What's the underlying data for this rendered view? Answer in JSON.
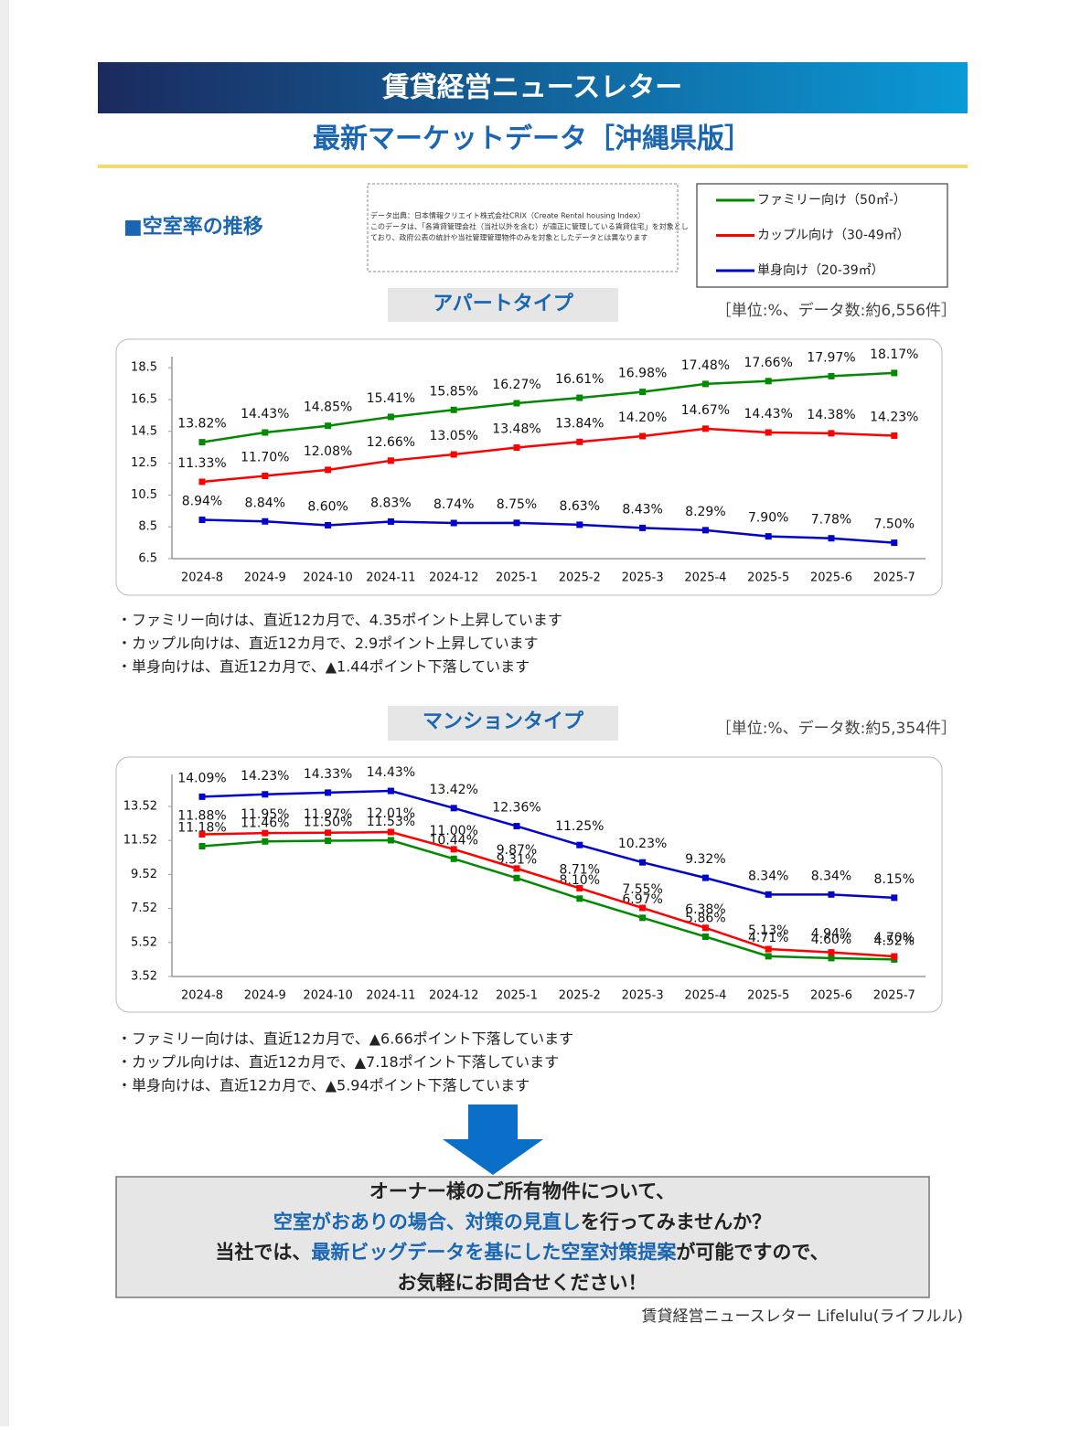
{
  "header": {
    "title": "賃貸経営ニュースレター",
    "subtitle": "最新マーケットデータ［沖縄県版］"
  },
  "section_title": "■空室率の推移",
  "source_note": [
    "データ出典：日本情報クリエイト株式会社CRIX（Create Rental housing Index）",
    "このデータは、「各賃貸管理会社（当社以外を含む）が適正に管理している賃貸住宅」を対象とし",
    "ており、政府公表の統計や当社管理管理物件のみを対象としたデータとは異なります"
  ],
  "legend": [
    {
      "name": "ファミリー向け（50㎡-）",
      "color": "#008a00"
    },
    {
      "name": "カップル向け（30-49㎡）",
      "color": "#ff0000"
    },
    {
      "name": "単身向け（20-39㎡）",
      "color": "#0000d0"
    }
  ],
  "chart_data": [
    {
      "type": "line",
      "title": "アパートタイプ",
      "unit_note": "［単位:%、データ数:約6,556件］",
      "grid": false,
      "categories": [
        "2024-8",
        "2024-9",
        "2024-10",
        "2024-11",
        "2024-12",
        "2025-1",
        "2025-2",
        "2025-3",
        "2025-4",
        "2025-5",
        "2025-6",
        "2025-7"
      ],
      "ylim": [
        6.5,
        19.2
      ],
      "yticks": [
        6.5,
        8.5,
        10.5,
        12.5,
        14.5,
        16.5,
        18.5
      ],
      "series": [
        {
          "values": [
            13.82,
            14.43,
            14.85,
            15.41,
            15.85,
            16.27,
            16.61,
            16.98,
            17.48,
            17.66,
            17.97,
            18.17
          ],
          "value_labels": [
            "13.82%",
            "14.43%",
            "14.85%",
            "15.41%",
            "15.85%",
            "16.27%",
            "16.61%",
            "16.98%",
            "17.48%",
            "17.66%",
            "17.97%",
            "18.17%"
          ]
        },
        {
          "values": [
            11.33,
            11.7,
            12.08,
            12.66,
            13.05,
            13.48,
            13.84,
            14.2,
            14.67,
            14.43,
            14.38,
            14.23
          ],
          "value_labels": [
            "11.33%",
            "11.70%",
            "12.08%",
            "12.66%",
            "13.05%",
            "13.48%",
            "13.84%",
            "14.20%",
            "14.67%",
            "14.43%",
            "14.38%",
            "14.23%"
          ]
        },
        {
          "values": [
            8.94,
            8.84,
            8.6,
            8.83,
            8.74,
            8.75,
            8.63,
            8.43,
            8.29,
            7.9,
            7.78,
            7.5
          ],
          "value_labels": [
            "8.94%",
            "8.84%",
            "8.60%",
            "8.83%",
            "8.74%",
            "8.75%",
            "8.63%",
            "8.43%",
            "8.29%",
            "7.90%",
            "7.78%",
            "7.50%"
          ]
        }
      ],
      "notes": [
        "・ファミリー向けは、直近12カ月で、4.35ポイント上昇しています",
        "・カップル向けは、直近12カ月で、2.9ポイント上昇しています",
        "・単身向けは、直近12カ月で、▲1.44ポイント下落しています"
      ]
    },
    {
      "type": "line",
      "title": "マンションタイプ",
      "unit_note": "［単位:%、データ数:約5,354件］",
      "grid": false,
      "categories": [
        "2024-8",
        "2024-9",
        "2024-10",
        "2024-11",
        "2024-12",
        "2025-1",
        "2025-2",
        "2025-3",
        "2025-4",
        "2025-5",
        "2025-6",
        "2025-7"
      ],
      "ylim": [
        3.52,
        15.4
      ],
      "yticks": [
        3.52,
        5.52,
        7.52,
        9.52,
        11.52,
        13.52
      ],
      "series": [
        {
          "values": [
            11.18,
            11.46,
            11.5,
            11.53,
            10.44,
            9.31,
            8.1,
            6.97,
            5.86,
            4.71,
            4.6,
            4.52
          ],
          "value_labels": [
            "11.18%",
            "11.46%",
            "11.50%",
            "11.53%",
            "10.44%",
            "9.31%",
            "8.10%",
            "6.97%",
            "5.86%",
            "4.71%",
            "4.60%",
            "4.52%"
          ]
        },
        {
          "values": [
            11.88,
            11.95,
            11.97,
            12.01,
            11.0,
            9.87,
            8.71,
            7.55,
            6.38,
            5.13,
            4.94,
            4.7
          ],
          "value_labels": [
            "11.88%",
            "11.95%",
            "11.97%",
            "12.01%",
            "11.00%",
            "9.87%",
            "8.71%",
            "7.55%",
            "6.38%",
            "5.13%",
            "4.94%",
            "4.70%"
          ]
        },
        {
          "values": [
            14.09,
            14.23,
            14.33,
            14.43,
            13.42,
            12.36,
            11.25,
            10.23,
            9.32,
            8.34,
            8.34,
            8.15
          ],
          "value_labels": [
            "14.09%",
            "14.23%",
            "14.33%",
            "14.43%",
            "13.42%",
            "12.36%",
            "11.25%",
            "10.23%",
            "9.32%",
            "8.34%",
            "8.34%",
            "8.15%"
          ]
        }
      ],
      "notes": [
        "・ファミリー向けは、直近12カ月で、▲6.66ポイント下落しています",
        "・カップル向けは、直近12カ月で、▲7.18ポイント下落しています",
        "・単身向けは、直近12カ月で、▲5.94ポイント下落しています"
      ]
    }
  ],
  "cta": [
    [
      {
        "text": "オーナー様のご所有物件について、",
        "emphasis": false
      }
    ],
    [
      {
        "text": "空室がおありの場合、対策の見直し",
        "emphasis": true
      },
      {
        "text": "を行ってみませんか？",
        "emphasis": false
      }
    ],
    [
      {
        "text": "当社では、",
        "emphasis": false
      },
      {
        "text": "最新ビッグデータを基にした空室対策提案",
        "emphasis": true
      },
      {
        "text": "が可能ですので、",
        "emphasis": false
      }
    ],
    [
      {
        "text": "お気軽にお問合せください！",
        "emphasis": false
      }
    ]
  ],
  "footer": "賃貸経営ニュースレター Lifelulu(ライフルル)"
}
